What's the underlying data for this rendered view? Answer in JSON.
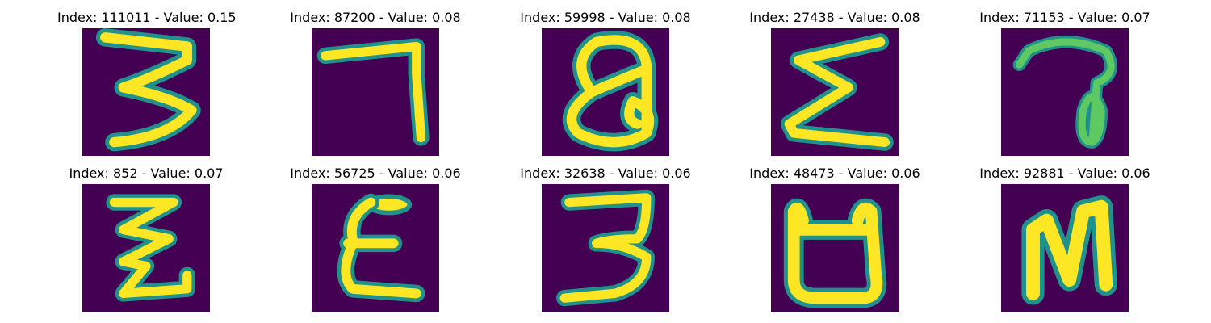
{
  "colors": {
    "background": "#440154",
    "stroke_edge": "#21918c",
    "stroke_mid": "#5ec962",
    "stroke_core": "#fde725"
  },
  "panels": [
    {
      "title": "Index: 111011 - Value: 0.15",
      "glyph": "three-shaped"
    },
    {
      "title": "Index: 87200 - Value: 0.08",
      "glyph": "seven-shaped"
    },
    {
      "title": "Index: 59998 - Value: 0.08",
      "glyph": "a-shaped"
    },
    {
      "title": "Index: 27438 - Value: 0.08",
      "glyph": "sigma-shaped"
    },
    {
      "title": "Index: 71153 - Value: 0.07",
      "glyph": "loop-shaped"
    },
    {
      "title": "Index: 852 - Value: 0.07",
      "glyph": "zigzag-shaped"
    },
    {
      "title": "Index: 56725 - Value: 0.06",
      "glyph": "e-shaped"
    },
    {
      "title": "Index: 32638 - Value: 0.06",
      "glyph": "three-shaped"
    },
    {
      "title": "Index: 48473 - Value: 0.06",
      "glyph": "cup-shaped"
    },
    {
      "title": "Index: 92881 - Value: 0.06",
      "glyph": "n-shaped"
    }
  ]
}
